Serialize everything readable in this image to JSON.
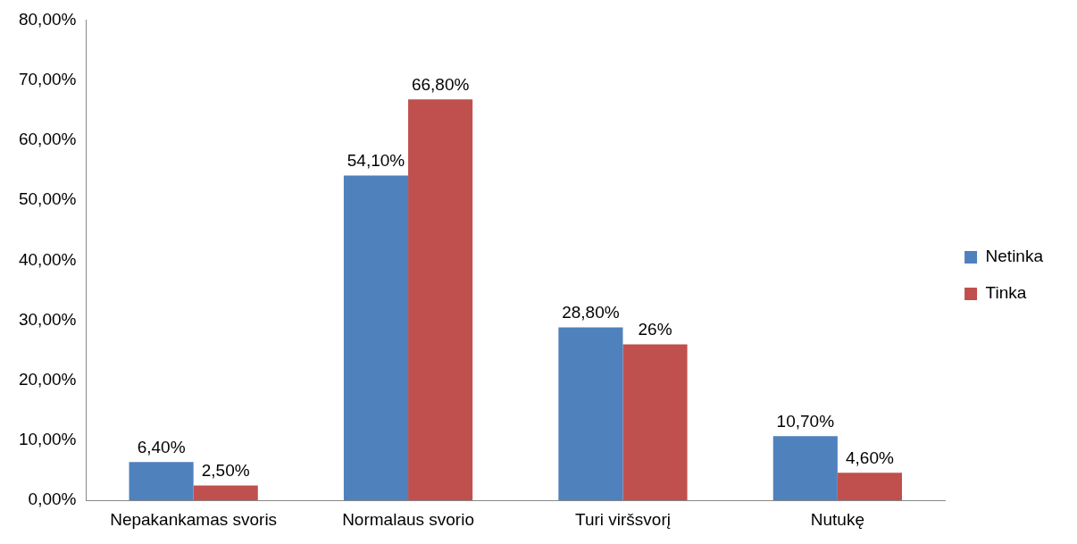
{
  "chart_data": {
    "type": "bar",
    "categories": [
      "Nepakankamas svoris",
      "Normalaus svorio",
      "Turi viršsvorį",
      "Nutukę"
    ],
    "series": [
      {
        "name": "Netinka",
        "color": "#4f81bd",
        "values": [
          6.4,
          54.1,
          28.8,
          10.7
        ],
        "value_labels": [
          "6,40%",
          "54,10%",
          "28,80%",
          "10,70%"
        ]
      },
      {
        "name": "Tinka",
        "color": "#c0504d",
        "values": [
          2.5,
          66.8,
          26,
          4.6
        ],
        "value_labels": [
          "2,50%",
          "66,80%",
          "26%",
          "4,60%"
        ]
      }
    ],
    "ylim": [
      0,
      80
    ],
    "yticks": [
      {
        "value": 0,
        "label": "0,00%"
      },
      {
        "value": 10,
        "label": "10,00%"
      },
      {
        "value": 20,
        "label": "20,00%"
      },
      {
        "value": 30,
        "label": "30,00%"
      },
      {
        "value": 40,
        "label": "40,00%"
      },
      {
        "value": 50,
        "label": "50,00%"
      },
      {
        "value": 60,
        "label": "60,00%"
      },
      {
        "value": 70,
        "label": "70,00%"
      },
      {
        "value": 80,
        "label": "80,00%"
      }
    ],
    "grid": false,
    "legend": "right"
  }
}
